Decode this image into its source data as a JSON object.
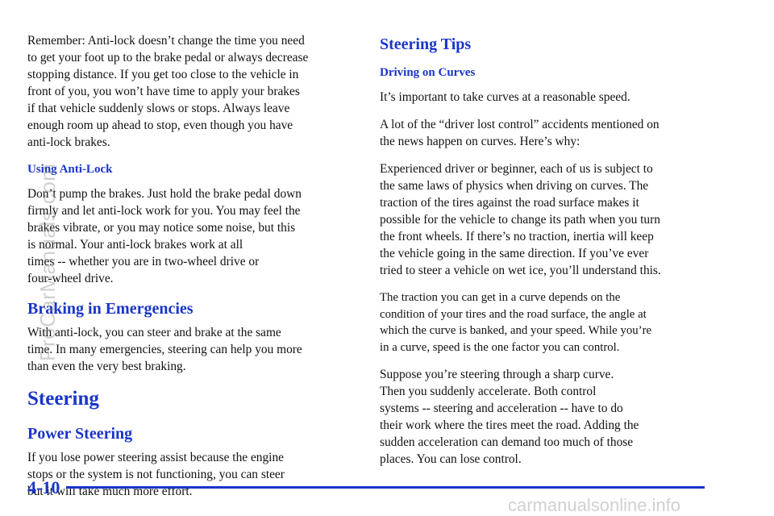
{
  "left_column": {
    "intro_paragraph": "Remember: Anti-lock doesn’t change the time you need\nto get your foot up to the brake pedal or always decrease\nstopping distance. If you get too close to the vehicle in\nfront of you, you won’t have time to apply your brakes\nif that vehicle suddenly slows or stops. Always leave\nenough room up ahead to stop, even though you have\nanti-lock brakes.",
    "using_antilock_heading": "Using Anti-Lock",
    "using_antilock_paragraph": "Don’t pump the brakes. Just hold the brake pedal down\nfirmly and let anti-lock work for you. You may feel the\nbrakes vibrate, or you may notice some noise, but this\nis normal. Your anti-lock brakes work at all\ntimes -- whether you are in two-wheel drive or\nfour-wheel drive.",
    "braking_heading": "Braking in Emergencies",
    "braking_paragraph": "With anti-lock, you can steer and brake at the same\ntime. In many emergencies, steering can help you more\nthan even the very best braking.",
    "steering_heading": "Steering",
    "power_steering_heading": "Power Steering",
    "power_steering_paragraph": "If you lose power steering assist because the engine\nstops or the system is not functioning, you can steer\nbut it will take much more effort."
  },
  "right_column": {
    "steering_tips_heading": "Steering Tips",
    "driving_on_curves_heading": "Driving on Curves",
    "paragraph_1": "It’s important to take curves at a reasonable speed.",
    "paragraph_2": "A lot of the “driver lost control” accidents mentioned on\nthe news happen on curves. Here’s why:",
    "paragraph_3": "Experienced driver or beginner, each of us is subject to\nthe same laws of physics when driving on curves. The\ntraction of the tires against the road surface makes it\npossible for the vehicle to change its path when you turn\nthe front wheels. If there’s no traction, inertia will keep\nthe vehicle going in the same direction. If you’ve ever\ntried to steer a vehicle on wet ice, you’ll understand this.",
    "paragraph_4": "The traction you can get in a curve depends on the\ncondition of your tires and the road surface, the angle at\nwhich the curve is banked, and your speed. While you’re\nin a curve, speed is the one factor you can control.",
    "paragraph_5": "Suppose you’re steering through a sharp curve.\nThen you suddenly accelerate. Both control\nsystems -- steering and acceleration -- have to do\ntheir work where the tires meet the road. Adding the\nsudden acceleration can demand too much of those\nplaces. You can lose control."
  },
  "footer": {
    "page_number": "4-10"
  },
  "watermarks": {
    "vertical": "ProCarManuals.com",
    "bottom": "carmanualsonline.info"
  },
  "colors": {
    "heading_blue": "#1a35c8",
    "body_text": "#111111",
    "watermark_gray": "#969696"
  }
}
